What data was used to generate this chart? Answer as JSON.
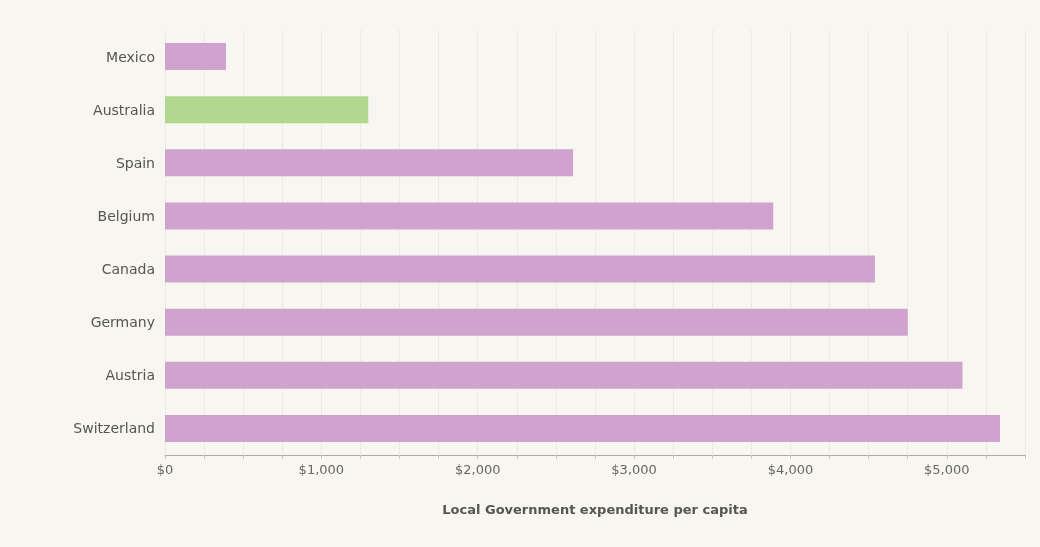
{
  "chart_data": {
    "type": "bar",
    "orientation": "horizontal",
    "xlabel": "Local Government expenditure per capita",
    "categories": [
      "Mexico",
      "Australia",
      "Spain",
      "Belgium",
      "Canada",
      "Germany",
      "Austria",
      "Switzerland"
    ],
    "values": [
      390,
      1300,
      2610,
      3890,
      4540,
      4750,
      5100,
      5340
    ],
    "colors": [
      "#cfa3cd",
      "#b2d78f",
      "#cfa3cd",
      "#cfa3cd",
      "#cfa3cd",
      "#cfa3cd",
      "#cfa3cd",
      "#cfa3cd"
    ],
    "xlim": [
      0,
      5500
    ],
    "xticks": [
      {
        "value": 0,
        "label": "$0"
      },
      {
        "value": 250,
        "label": null
      },
      {
        "value": 500,
        "label": null
      },
      {
        "value": 750,
        "label": null
      },
      {
        "value": 1000,
        "label": "$1,000"
      },
      {
        "value": 1250,
        "label": null
      },
      {
        "value": 1500,
        "label": null
      },
      {
        "value": 1750,
        "label": null
      },
      {
        "value": 2000,
        "label": "$2,000"
      },
      {
        "value": 2250,
        "label": null
      },
      {
        "value": 2500,
        "label": null
      },
      {
        "value": 2750,
        "label": null
      },
      {
        "value": 3000,
        "label": "$3,000"
      },
      {
        "value": 3250,
        "label": null
      },
      {
        "value": 3500,
        "label": null
      },
      {
        "value": 3750,
        "label": null
      },
      {
        "value": 4000,
        "label": "$4,000"
      },
      {
        "value": 4250,
        "label": null
      },
      {
        "value": 4500,
        "label": null
      },
      {
        "value": 4750,
        "label": null
      },
      {
        "value": 5000,
        "label": "$5,000"
      },
      {
        "value": 5250,
        "label": null
      },
      {
        "value": 5500,
        "label": null
      }
    ],
    "grid": "x"
  }
}
